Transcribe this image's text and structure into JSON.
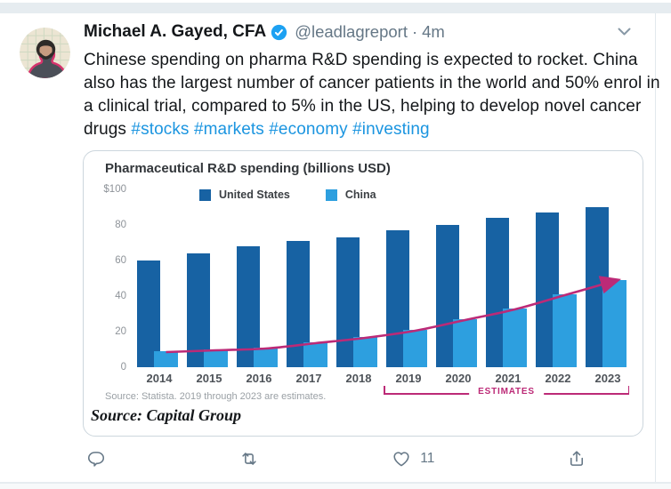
{
  "tweet": {
    "author": "Michael A. Gayed, CFA",
    "handle": "@leadlagreport",
    "dot": "·",
    "time": "4m",
    "text": "Chinese spending on pharma R&D spending is expected to rocket. China also has the largest number of cancer patients in the world and 50% enrol in a clinical trial, compared to 5% in the US, helping to develop novel cancer drugs",
    "hashtags": [
      "#stocks",
      "#markets",
      "#economy",
      "#investing"
    ],
    "source_caption": "Source: Capital Group"
  },
  "chart_data": {
    "type": "bar",
    "title": "Pharmaceutical R&D spending (billions USD)",
    "categories": [
      "2014",
      "2015",
      "2016",
      "2017",
      "2018",
      "2019",
      "2020",
      "2021",
      "2022",
      "2023"
    ],
    "series": [
      {
        "name": "United States",
        "color": "#1762a3",
        "values": [
          60,
          64,
          68,
          71,
          73,
          77,
          80,
          84,
          87,
          90
        ]
      },
      {
        "name": "China",
        "color": "#2d9fdf",
        "values": [
          9,
          10,
          11,
          14,
          17,
          21,
          27,
          33,
          41,
          49
        ]
      }
    ],
    "ylim": [
      0,
      100
    ],
    "yticks": [
      100,
      80,
      60,
      40,
      20,
      0
    ],
    "ytick_labels": [
      "$100",
      "80",
      "60",
      "40",
      "20",
      "0"
    ],
    "grid": false,
    "legend_position": "top-left",
    "trend_arrow": {
      "series": "China",
      "color": "#bc2a77"
    },
    "estimates": {
      "label": "ESTIMATES",
      "from": "2019",
      "to": "2023",
      "color": "#bc2a77"
    },
    "source_note": "Source: Statista. 2019 through 2023 are estimates."
  },
  "actions": {
    "like_count": "11"
  },
  "icons": {
    "verified": "verified-badge",
    "more": "chevron-down",
    "reply": "reply-bubble",
    "retweet": "retweet-arrows",
    "like": "heart-outline",
    "share": "share-up-arrow"
  },
  "colors": {
    "link": "#1b95e0",
    "verified": "#1da1f2",
    "icon_gray": "#657786",
    "card_border": "#ccd6dd"
  }
}
